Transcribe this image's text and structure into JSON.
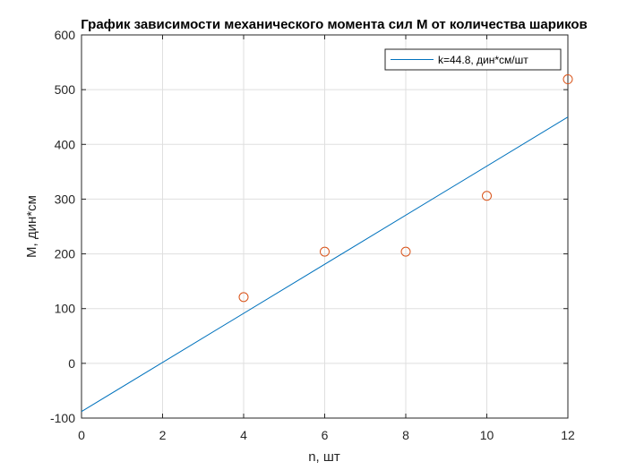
{
  "chart_data": {
    "type": "scatter",
    "title": "График зависимости механического момента сил М от количества шариков",
    "xlabel": "n, шт",
    "ylabel": "М, дин*см",
    "xlim": [
      0,
      12
    ],
    "ylim": [
      -100,
      600
    ],
    "xticks": [
      0,
      2,
      4,
      6,
      8,
      10,
      12
    ],
    "yticks": [
      -100,
      0,
      100,
      200,
      300,
      400,
      500,
      600
    ],
    "grid": true,
    "legend_position": "top-right",
    "points": {
      "x": [
        4,
        6,
        8,
        10,
        12
      ],
      "y": [
        121,
        204,
        204,
        306,
        519
      ],
      "color": "#D95319",
      "marker": "circle"
    },
    "fit_line": {
      "name": "k=44.8, дин*см/шт",
      "x": [
        0,
        12
      ],
      "y": [
        -88,
        450
      ],
      "color": "#0072BD"
    }
  }
}
